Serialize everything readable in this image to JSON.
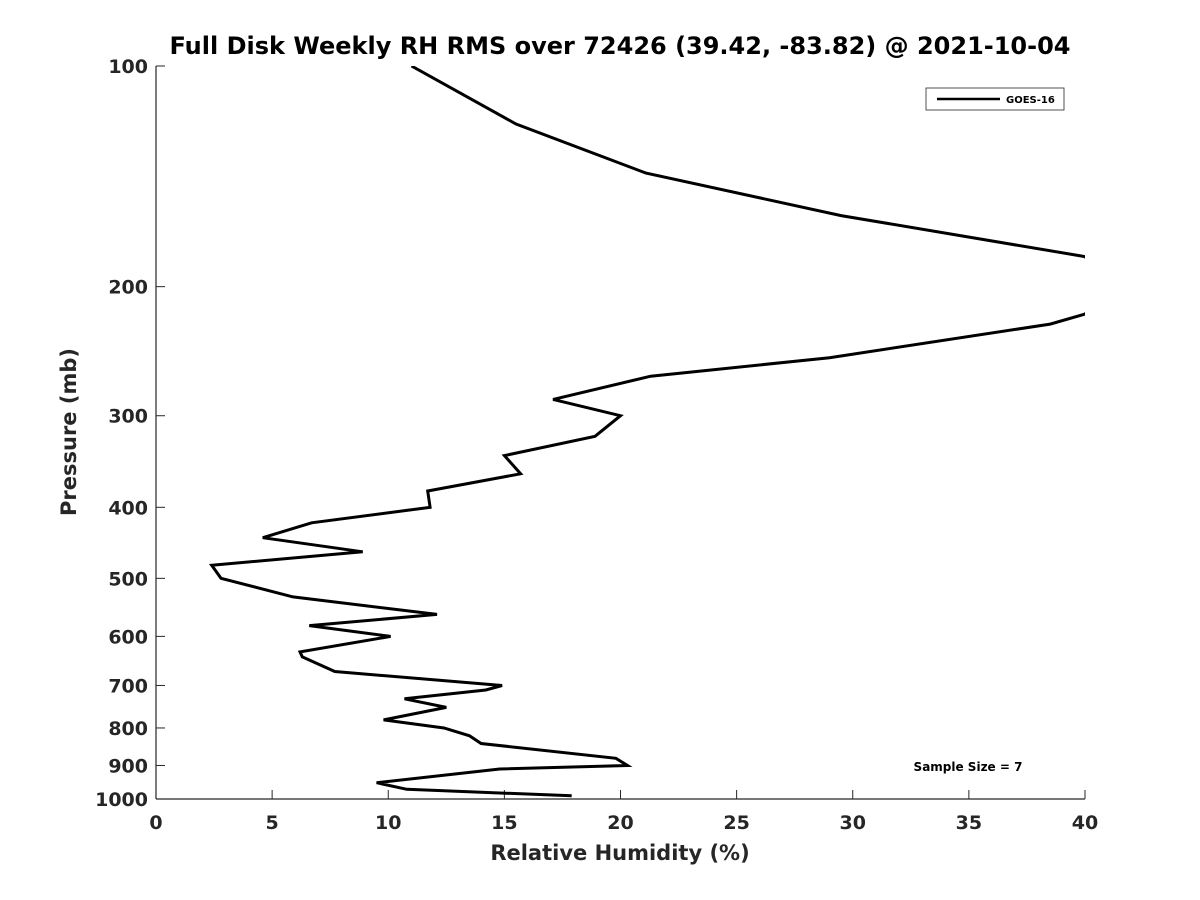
{
  "chart_data": {
    "type": "line",
    "title": "Full Disk Weekly RH RMS over 72426 (39.42, -83.82) @ 2021-10-04",
    "xlabel": "Relative Humidity (%)",
    "ylabel": "Pressure (mb)",
    "xlim": [
      0,
      40
    ],
    "ylim": [
      100,
      1000
    ],
    "yscale": "log",
    "yreversed": true,
    "xticks": [
      "0",
      "5",
      "10",
      "15",
      "20",
      "25",
      "30",
      "35",
      "40"
    ],
    "yticks": [
      "100",
      "200",
      "300",
      "400",
      "500",
      "600",
      "700",
      "800",
      "900",
      "1000"
    ],
    "legend_position": "top-right",
    "annotation": "Sample Size = 7",
    "series": [
      {
        "name": "GOES-16",
        "color": "#000000",
        "x": [
          11.0,
          15.5,
          21.1,
          29.5,
          40.0,
          41.0,
          40.0,
          38.5,
          29.0,
          21.3,
          17.1,
          20.0,
          18.9,
          15.0,
          15.7,
          11.7,
          11.8,
          6.7,
          4.6,
          8.9,
          2.4,
          2.8,
          5.9,
          12.1,
          6.6,
          10.1,
          6.2,
          6.3,
          7.7,
          14.9,
          14.2,
          10.7,
          12.5,
          9.8,
          12.4,
          13.5,
          14.0,
          19.8,
          20.3,
          14.8,
          9.5,
          10.8,
          17.9
        ],
        "y": [
          100,
          120,
          140,
          160,
          182,
          200,
          218,
          225,
          250,
          265,
          285,
          300,
          320,
          340,
          360,
          380,
          400,
          420,
          440,
          460,
          480,
          500,
          530,
          560,
          580,
          600,
          630,
          640,
          670,
          700,
          710,
          730,
          750,
          780,
          800,
          820,
          840,
          880,
          900,
          910,
          950,
          970,
          990
        ]
      }
    ]
  }
}
